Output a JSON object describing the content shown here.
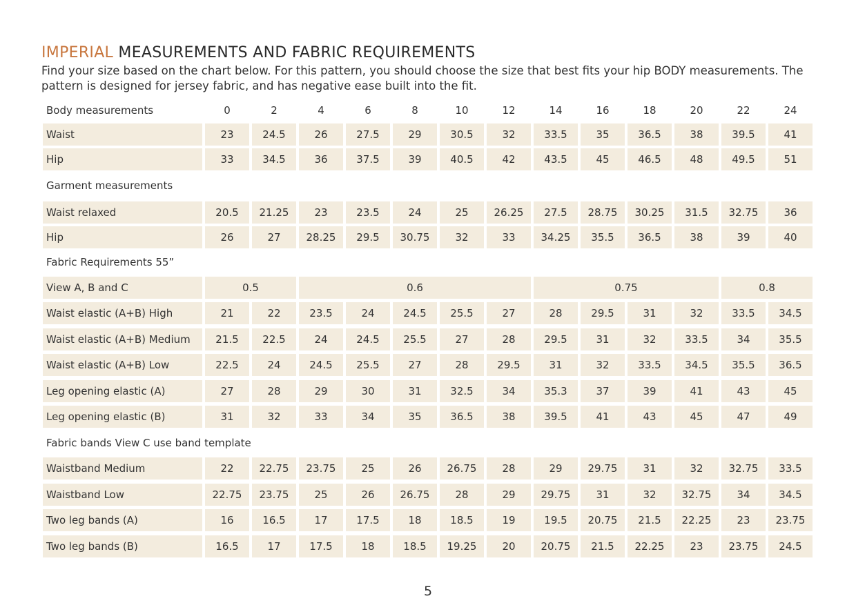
{
  "header": {
    "title_accent": "IMPERIAL",
    "title": "MEASUREMENTS AND FABRIC REQUIREMENTS",
    "intro": "Find your size based on the chart below. For this pattern, you should choose the size that best fits your hip BODY measurements.  The pattern is designed for jersey fabric, and has negative ease built into the fit."
  },
  "table": {
    "sizes": [
      "0",
      "2",
      "4",
      "6",
      "8",
      "10",
      "12",
      "14",
      "16",
      "18",
      "20",
      "22",
      "24"
    ],
    "sections": [
      {
        "heading": "Body measurements",
        "rows": [
          {
            "label": "Waist",
            "cells": [
              "23",
              "24.5",
              "26",
              "27.5",
              "29",
              "30.5",
              "32",
              "33.5",
              "35",
              "36.5",
              "38",
              "39.5",
              "41"
            ]
          },
          {
            "label": "Hip",
            "cells": [
              "33",
              "34.5",
              "36",
              "37.5",
              "39",
              "40.5",
              "42",
              "43.5",
              "45",
              "46.5",
              "48",
              "49.5",
              "51"
            ]
          }
        ]
      },
      {
        "heading": "Garment measurements",
        "rows": [
          {
            "label": "Waist relaxed",
            "cells": [
              "20.5",
              "21.25",
              "23",
              "23.5",
              "24",
              "25",
              "26.25",
              "27.5",
              "28.75",
              "30.25",
              "31.5",
              "32.75",
              "36"
            ]
          },
          {
            "label": "Hip",
            "cells": [
              "26",
              "27",
              "28.25",
              "29.5",
              "30.75",
              "32",
              "33",
              "34.25",
              "35.5",
              "36.5",
              "38",
              "39",
              "40"
            ]
          }
        ]
      },
      {
        "heading": "Fabric Requirements 55”",
        "rows": [
          {
            "label": "View A, B and C",
            "cells": [
              "0.5",
              "0.6",
              "0.75",
              "0.8"
            ]
          },
          {
            "label": "Waist elastic (A+B) High",
            "cells": [
              "21",
              "22",
              "23.5",
              "24",
              "24.5",
              "25.5",
              "27",
              "28",
              "29.5",
              "31",
              "32",
              "33.5",
              "34.5"
            ]
          },
          {
            "label": "Waist elastic (A+B) Medium",
            "cells": [
              "21.5",
              "22.5",
              "24",
              "24.5",
              "25.5",
              "27",
              "28",
              "29.5",
              "31",
              "32",
              "33.5",
              "34",
              "35.5"
            ]
          },
          {
            "label": "Waist elastic (A+B) Low",
            "cells": [
              "22.5",
              "24",
              "24.5",
              "25.5",
              "27",
              "28",
              "29.5",
              "31",
              "32",
              "33.5",
              "34.5",
              "35.5",
              "36.5"
            ]
          },
          {
            "label": "Leg opening elastic (A)",
            "cells": [
              "27",
              "28",
              "29",
              "30",
              "31",
              "32.5",
              "34",
              "35.3",
              "37",
              "39",
              "41",
              "43",
              "45"
            ]
          },
          {
            "label": "Leg opening elastic (B)",
            "cells": [
              "31",
              "32",
              "33",
              "34",
              "35",
              "36.5",
              "38",
              "39.5",
              "41",
              "43",
              "45",
              "47",
              "49"
            ]
          }
        ]
      },
      {
        "heading": "Fabric bands View C use band template",
        "rows": [
          {
            "label": "Waistband Medium",
            "cells": [
              "22",
              "22.75",
              "23.75",
              "25",
              "26",
              "26.75",
              "28",
              "29",
              "29.75",
              "31",
              "32",
              "32.75",
              "33.5"
            ]
          },
          {
            "label": "Waistband Low",
            "cells": [
              "22.75",
              "23.75",
              "25",
              "26",
              "26.75",
              "28",
              "29",
              "29.75",
              "31",
              "32",
              "32.75",
              "34",
              "34.5"
            ]
          },
          {
            "label": "Two leg bands (A)",
            "cells": [
              "16",
              "16.5",
              "17",
              "17.5",
              "18",
              "18.5",
              "19",
              "19.5",
              "20.75",
              "21.5",
              "22.25",
              "23",
              "23.75"
            ]
          },
          {
            "label": "Two leg bands (B)",
            "cells": [
              "16.5",
              "17",
              "17.5",
              "18",
              "18.5",
              "19.25",
              "20",
              "20.75",
              "21.5",
              "22.25",
              "23",
              "23.75",
              "24.5"
            ]
          }
        ]
      }
    ]
  },
  "footer": {
    "page_number": "5"
  }
}
